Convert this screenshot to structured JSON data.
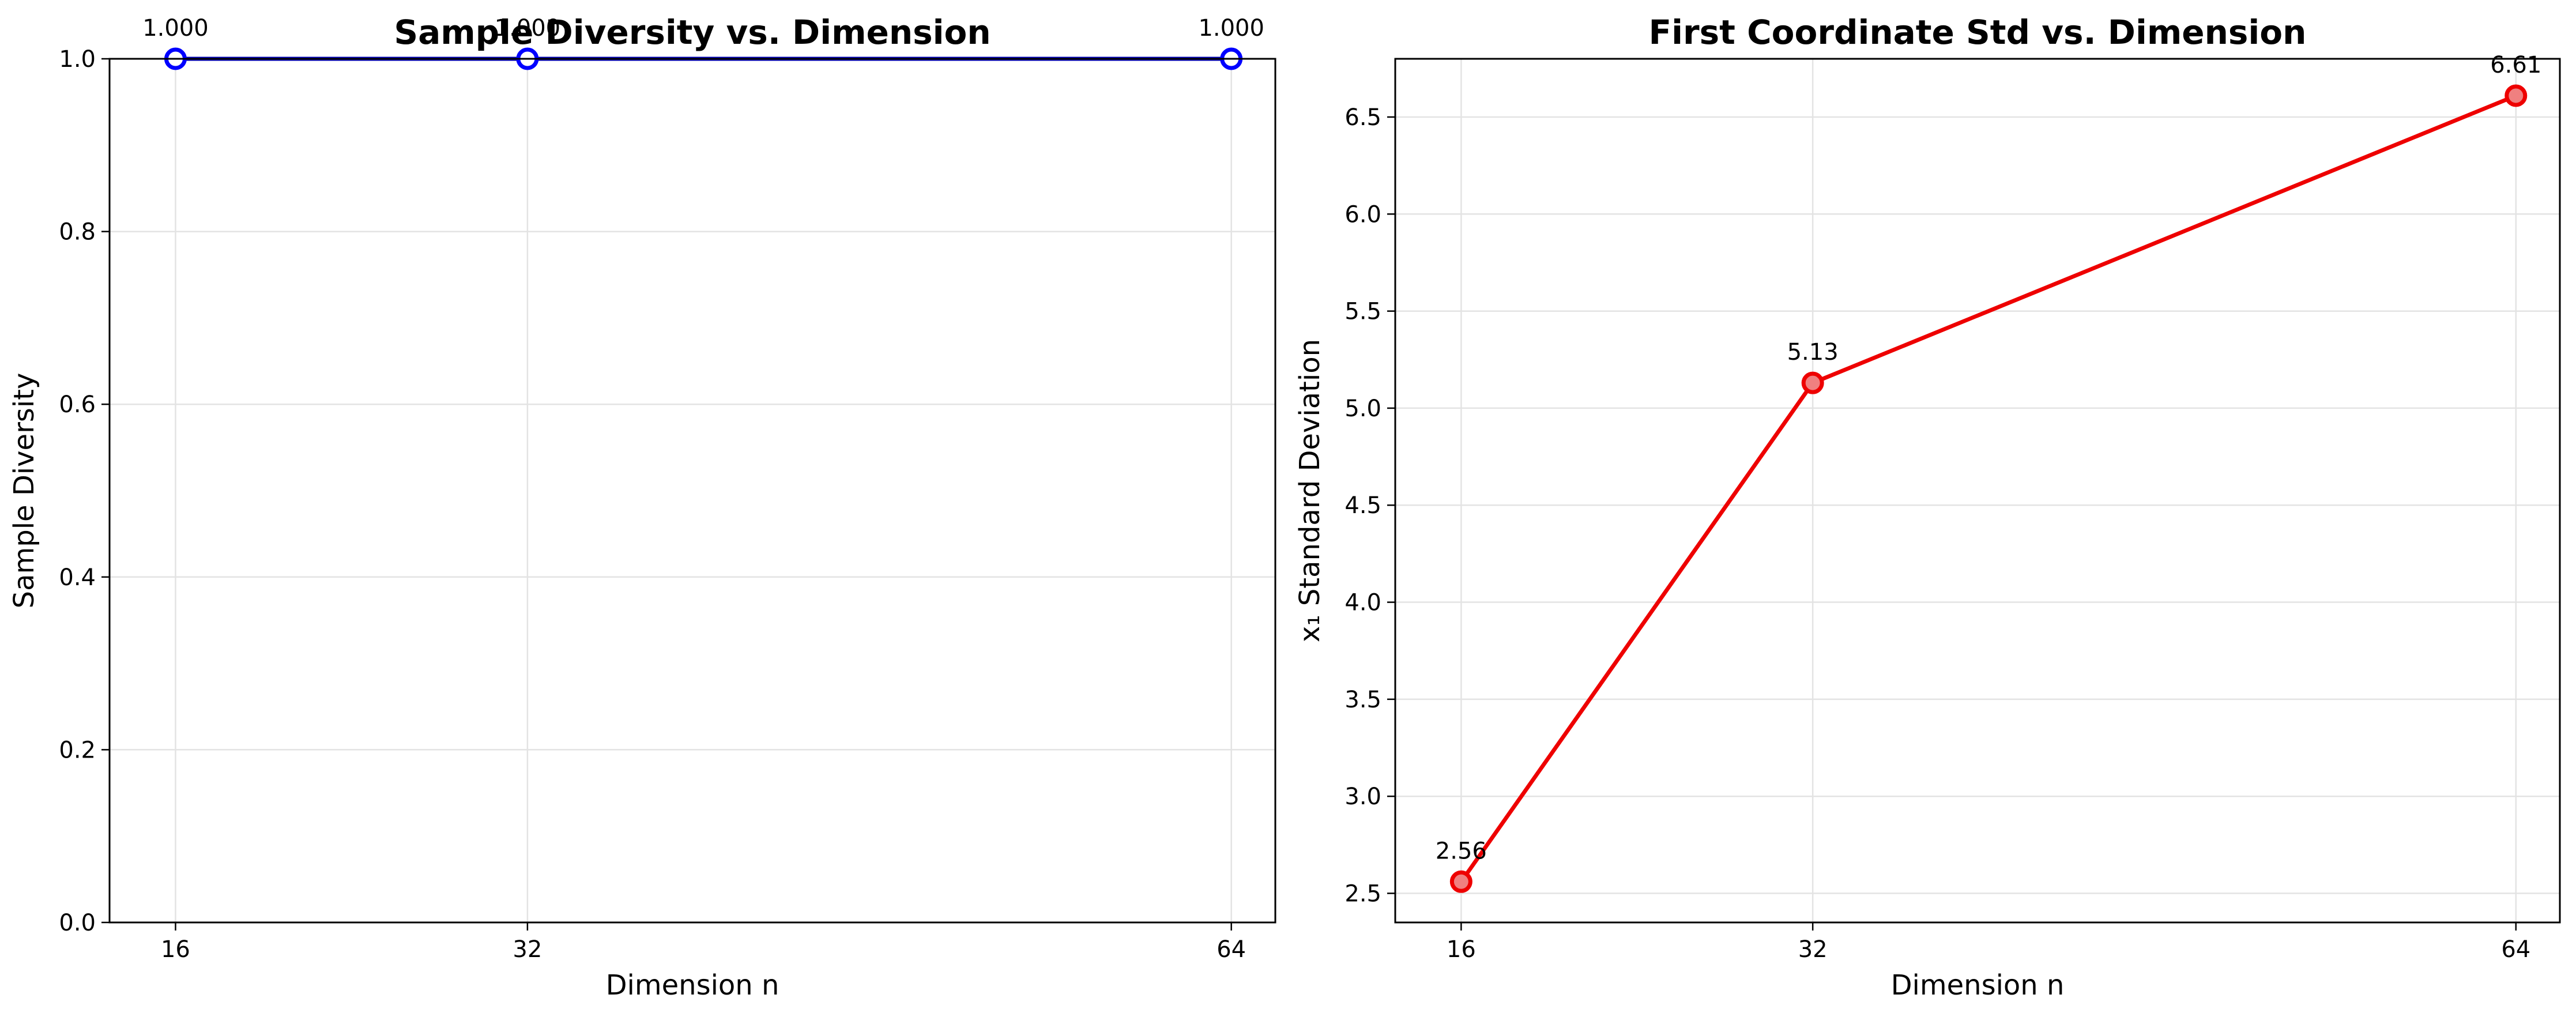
{
  "chart_data": [
    {
      "type": "line",
      "title": "Sample Diversity vs. Dimension",
      "xlabel": "Dimension n",
      "ylabel": "Sample Diversity",
      "x": [
        16,
        32,
        64
      ],
      "xticks": [
        "16",
        "32",
        "64"
      ],
      "ylim": [
        0.0,
        1.0
      ],
      "yticks": [
        "0.0",
        "0.2",
        "0.4",
        "0.6",
        "0.8",
        "1.0"
      ],
      "grid": true,
      "series": [
        {
          "values": [
            1.0,
            1.0,
            1.0
          ],
          "labels": [
            "1.000",
            "1.000",
            "1.000"
          ]
        }
      ],
      "colors": {
        "line": "#0000b3",
        "marker_edge": "#0000ff",
        "marker_fill": "#ffffff"
      }
    },
    {
      "type": "line",
      "title": "First Coordinate Std vs. Dimension",
      "xlabel": "Dimension n",
      "ylabel": "x₁ Standard Deviation",
      "x": [
        16,
        32,
        64
      ],
      "xticks": [
        "16",
        "32",
        "64"
      ],
      "ylim": [
        2.35,
        6.8
      ],
      "yticks": [
        "2.5",
        "3.0",
        "3.5",
        "4.0",
        "4.5",
        "5.0",
        "5.5",
        "6.0",
        "6.5"
      ],
      "grid": true,
      "series": [
        {
          "values": [
            2.56,
            5.13,
            6.61
          ],
          "labels": [
            "2.56",
            "5.13",
            "6.61"
          ]
        }
      ],
      "colors": {
        "line": "#ee0000",
        "marker_edge": "#ee0000",
        "marker_fill": "#f08080"
      }
    }
  ]
}
